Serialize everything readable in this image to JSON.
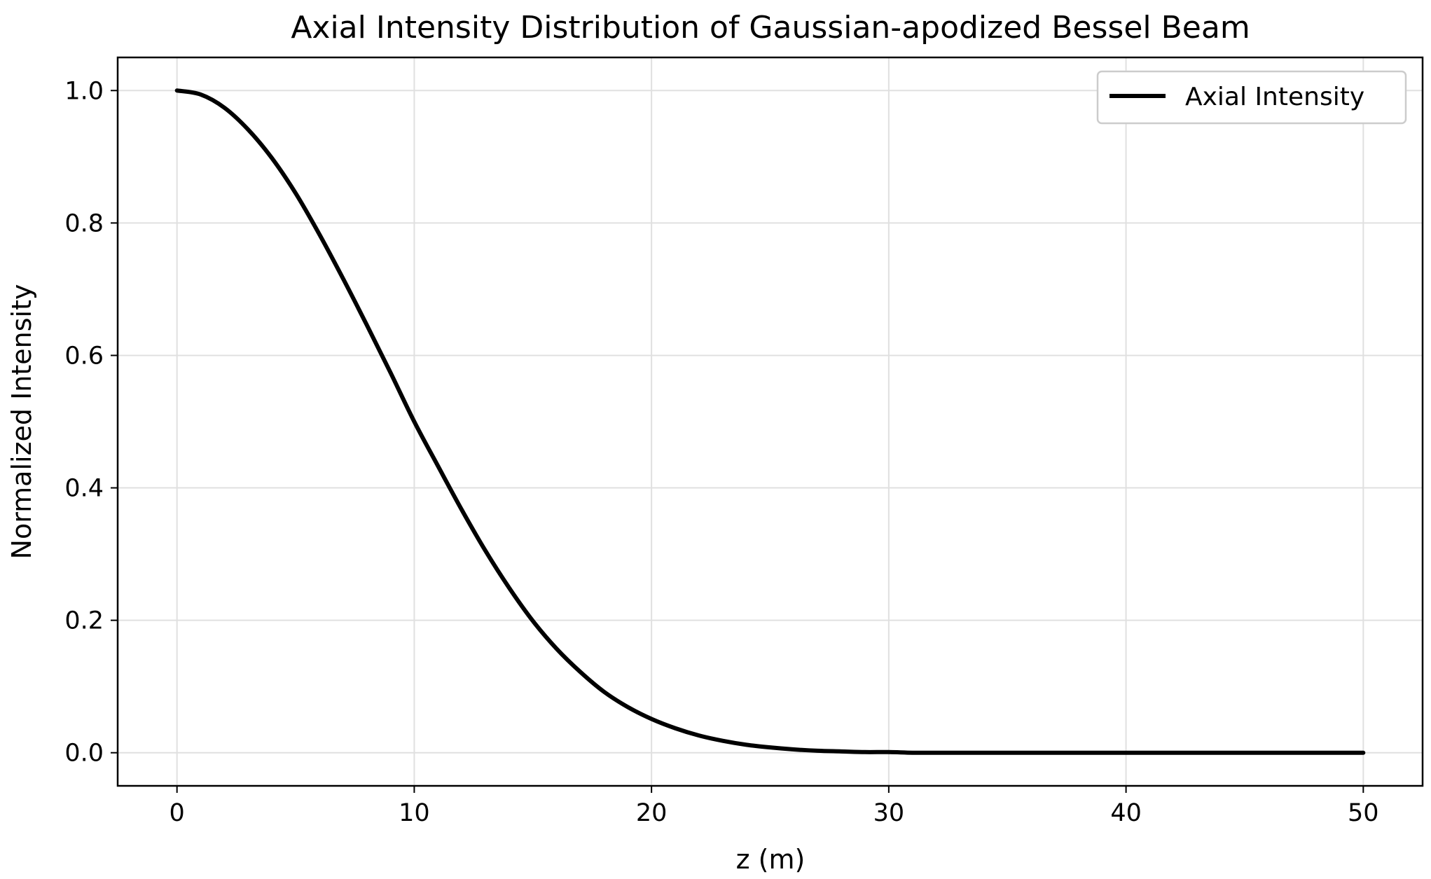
{
  "chart_data": {
    "type": "line",
    "title": "Axial Intensity Distribution of Gaussian-apodized Bessel Beam",
    "xlabel": "z (m)",
    "ylabel": "Normalized Intensity",
    "xlim": [
      -2.5,
      52.5
    ],
    "ylim": [
      -0.05,
      1.05
    ],
    "xticks": [
      0,
      10,
      20,
      30,
      40,
      50
    ],
    "xtick_labels": [
      "0",
      "10",
      "20",
      "30",
      "40",
      "50"
    ],
    "yticks": [
      0.0,
      0.2,
      0.4,
      0.6,
      0.8,
      1.0
    ],
    "ytick_labels": [
      "0.0",
      "0.2",
      "0.4",
      "0.6",
      "0.8",
      "1.0"
    ],
    "grid": true,
    "legend_position": "top-right",
    "series": [
      {
        "name": "Axial Intensity",
        "color": "#000000",
        "x": [
          0,
          1,
          2,
          3,
          4,
          5,
          6,
          7,
          8,
          9,
          10,
          11,
          12,
          13,
          14,
          15,
          16,
          17,
          18,
          19,
          20,
          21,
          22,
          23,
          24,
          25,
          26,
          27,
          28,
          29,
          30,
          31,
          32,
          33,
          34,
          35,
          36,
          37,
          38,
          39,
          40,
          41,
          42,
          43,
          44,
          45,
          46,
          47,
          48,
          49,
          50
        ],
        "y": [
          1.0,
          0.994,
          0.974,
          0.941,
          0.898,
          0.845,
          0.783,
          0.716,
          0.646,
          0.574,
          0.5,
          0.433,
          0.367,
          0.305,
          0.249,
          0.199,
          0.157,
          0.122,
          0.092,
          0.069,
          0.051,
          0.037,
          0.026,
          0.018,
          0.012,
          0.008,
          0.005,
          0.003,
          0.002,
          0.001,
          0.001,
          0.0,
          0.0,
          0.0,
          0.0,
          0.0,
          0.0,
          0.0,
          0.0,
          0.0,
          0.0,
          0.0,
          0.0,
          0.0,
          0.0,
          0.0,
          0.0,
          0.0,
          0.0,
          0.0,
          0.0
        ]
      }
    ]
  }
}
